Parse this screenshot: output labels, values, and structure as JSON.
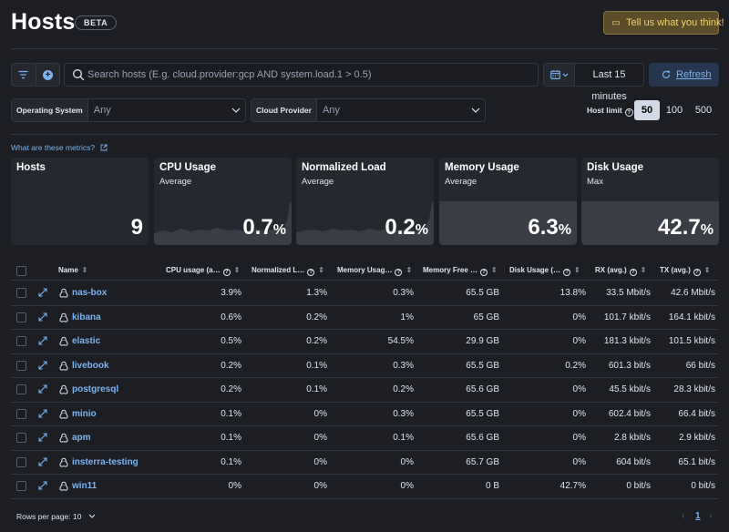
{
  "header": {
    "title": "Hosts",
    "badge": "BETA",
    "feedback_label": "Tell us what you think!"
  },
  "search": {
    "placeholder": "Search hosts (E.g. cloud.provider:gcp AND system.load.1 > 0.5)"
  },
  "datepicker": {
    "range": "Last 15 minutes"
  },
  "refresh_label": "Refresh",
  "filters": [
    {
      "label": "Operating System",
      "value": "Any"
    },
    {
      "label": "Cloud Provider",
      "value": "Any"
    }
  ],
  "host_limit": {
    "label": "Host limit",
    "options": [
      "50",
      "100",
      "500"
    ],
    "selected": "50"
  },
  "metrics_link": "What are these metrics?",
  "kpis": [
    {
      "title": "Hosts",
      "subtitle": "",
      "value": "9",
      "unit": ""
    },
    {
      "title": "CPU Usage",
      "subtitle": "Average",
      "value": "0.7",
      "unit": "%"
    },
    {
      "title": "Normalized Load",
      "subtitle": "Average",
      "value": "0.2",
      "unit": "%"
    },
    {
      "title": "Memory Usage",
      "subtitle": "Average",
      "value": "6.3",
      "unit": "%"
    },
    {
      "title": "Disk Usage",
      "subtitle": "Max",
      "value": "42.7",
      "unit": "%"
    }
  ],
  "table": {
    "columns": [
      "Name",
      "CPU usage (a…",
      "Normalized L…",
      "Memory Usag…",
      "Memory Free …",
      "Disk Usage (…",
      "RX (avg.)",
      "TX (avg.)"
    ],
    "rows": [
      {
        "name": "nas-box",
        "cpu": "3.9%",
        "load": "1.3%",
        "mem": "0.3%",
        "memfree": "65.5 GB",
        "disk": "13.8%",
        "rx": "33.5 Mbit/s",
        "tx": "42.6 Mbit/s"
      },
      {
        "name": "kibana",
        "cpu": "0.6%",
        "load": "0.2%",
        "mem": "1%",
        "memfree": "65 GB",
        "disk": "0%",
        "rx": "101.7 kbit/s",
        "tx": "164.1 kbit/s"
      },
      {
        "name": "elastic",
        "cpu": "0.5%",
        "load": "0.2%",
        "mem": "54.5%",
        "memfree": "29.9 GB",
        "disk": "0%",
        "rx": "181.3 kbit/s",
        "tx": "101.5 kbit/s"
      },
      {
        "name": "livebook",
        "cpu": "0.2%",
        "load": "0.1%",
        "mem": "0.3%",
        "memfree": "65.5 GB",
        "disk": "0.2%",
        "rx": "601.3 bit/s",
        "tx": "66 bit/s"
      },
      {
        "name": "postgresql",
        "cpu": "0.2%",
        "load": "0.1%",
        "mem": "0.2%",
        "memfree": "65.6 GB",
        "disk": "0%",
        "rx": "45.5 kbit/s",
        "tx": "28.3 kbit/s"
      },
      {
        "name": "minio",
        "cpu": "0.1%",
        "load": "0%",
        "mem": "0.3%",
        "memfree": "65.5 GB",
        "disk": "0%",
        "rx": "602.4 bit/s",
        "tx": "66.4 bit/s"
      },
      {
        "name": "apm",
        "cpu": "0.1%",
        "load": "0%",
        "mem": "0.1%",
        "memfree": "65.6 GB",
        "disk": "0%",
        "rx": "2.8 kbit/s",
        "tx": "2.9 kbit/s"
      },
      {
        "name": "insterra-testing",
        "cpu": "0.1%",
        "load": "0%",
        "mem": "0%",
        "memfree": "65.7 GB",
        "disk": "0%",
        "rx": "604 bit/s",
        "tx": "65.1 bit/s"
      },
      {
        "name": "win11",
        "cpu": "0%",
        "load": "0%",
        "mem": "0%",
        "memfree": "0 B",
        "disk": "42.7%",
        "rx": "0 bit/s",
        "tx": "0 bit/s"
      }
    ]
  },
  "footer": {
    "rows_per_page": "Rows per page: 10",
    "page": "1"
  },
  "colors": {
    "accent": "#7ab3f0",
    "feedback_text": "#f3d371",
    "background": "#1d1e24",
    "card": "#25282f"
  }
}
